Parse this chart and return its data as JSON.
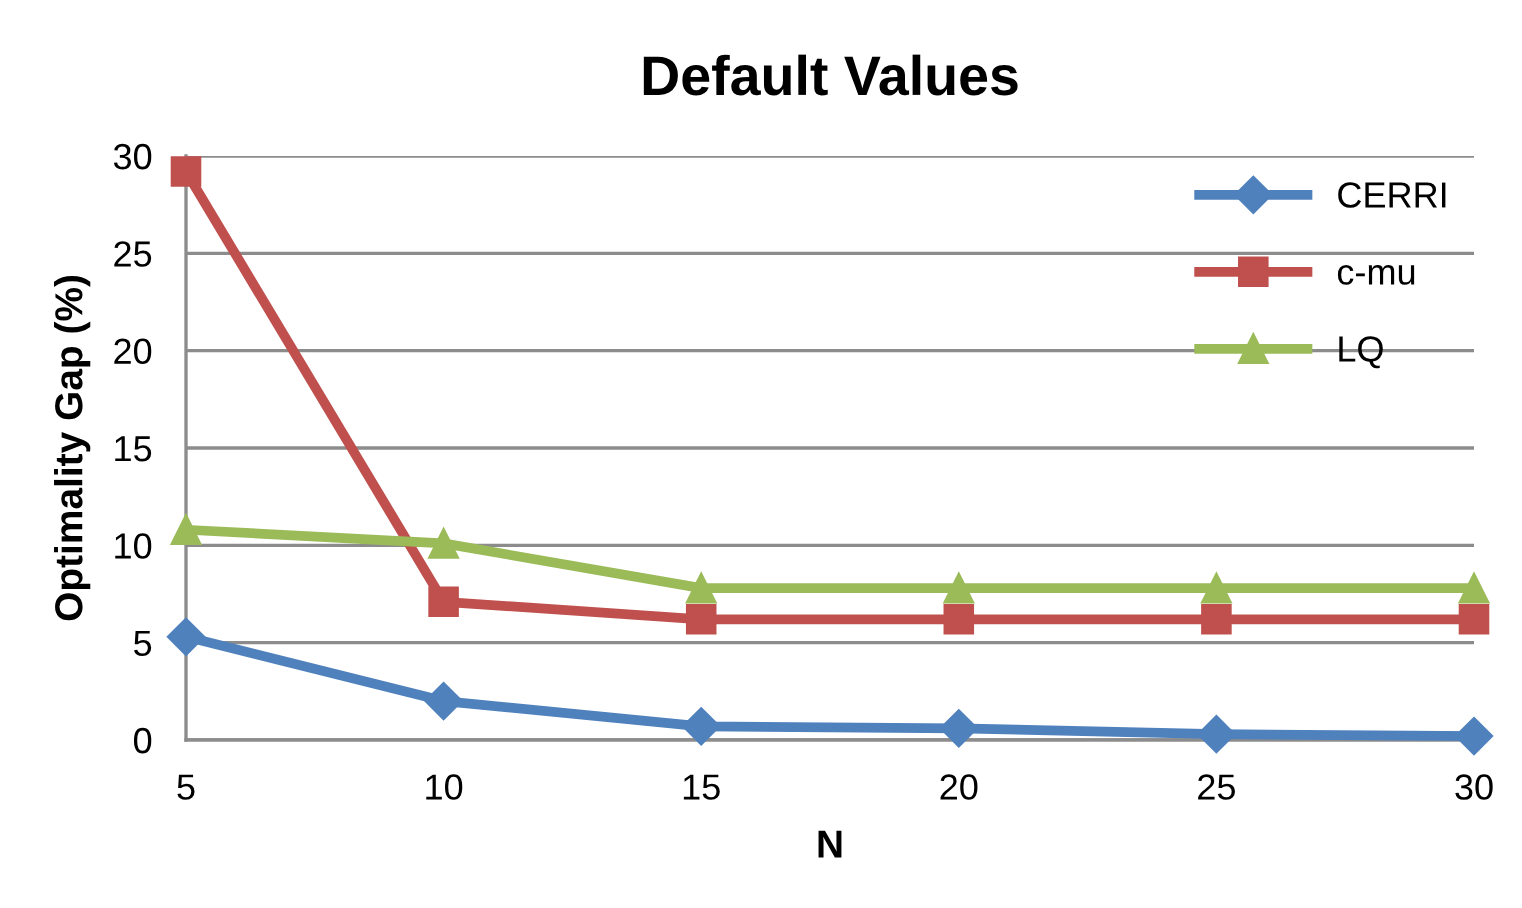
{
  "chart_data": {
    "type": "line",
    "title": "Default Values",
    "xlabel": "N",
    "ylabel": "Optimality Gap (%)",
    "categories": [
      "5",
      "10",
      "15",
      "20",
      "25",
      "30"
    ],
    "series": [
      {
        "name": "CERRI",
        "color": "#4f81bd",
        "marker": "diamond",
        "values": [
          5.3,
          2.0,
          0.7,
          0.6,
          0.3,
          0.2
        ]
      },
      {
        "name": "c-mu",
        "color": "#c0504d",
        "marker": "square",
        "values": [
          29.2,
          7.1,
          6.2,
          6.2,
          6.2,
          6.2
        ]
      },
      {
        "name": "LQ",
        "color": "#9bbb59",
        "marker": "triangle",
        "values": [
          10.8,
          10.1,
          7.8,
          7.8,
          7.8,
          7.8
        ]
      }
    ],
    "ylim": [
      0,
      30
    ],
    "yticks": [
      0,
      5,
      10,
      15,
      20,
      25,
      30
    ],
    "grid": "y",
    "legend": "top right",
    "line_style": "solid"
  }
}
